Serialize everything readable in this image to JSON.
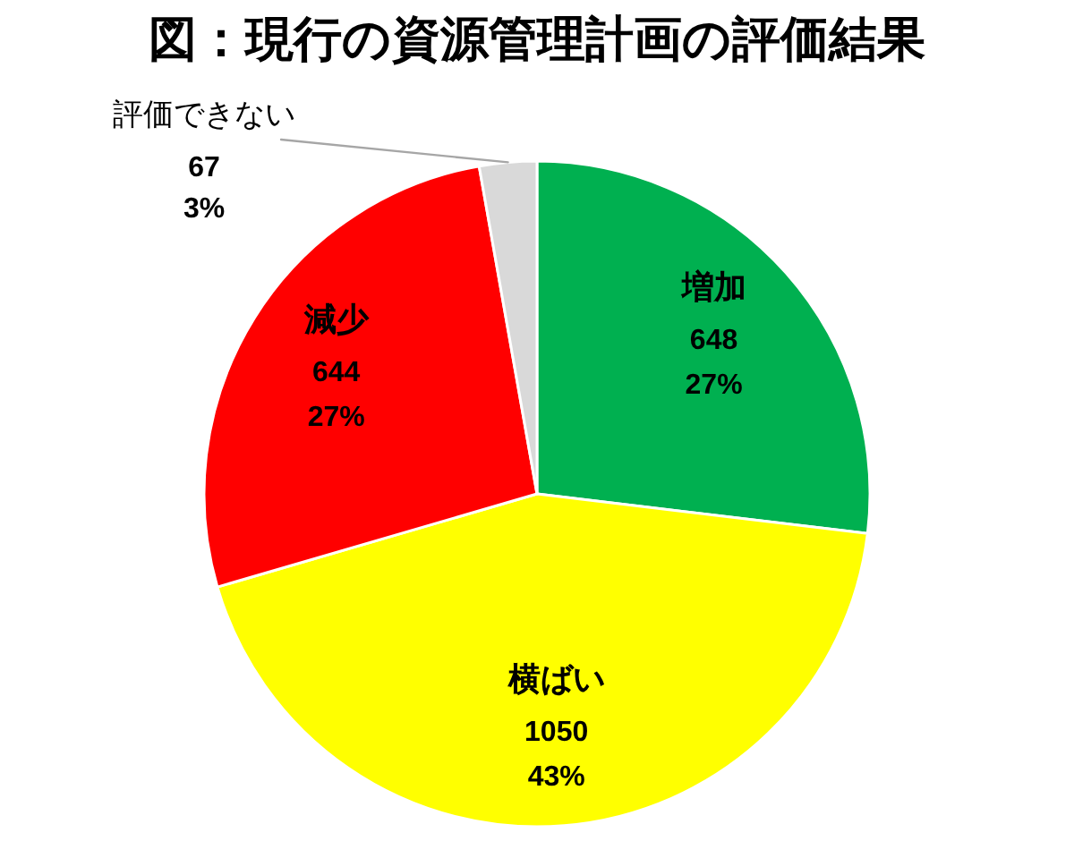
{
  "chart_data": {
    "type": "pie",
    "title": "図：現行の資源管理計画の評価結果",
    "categories": [
      "増加",
      "横ばい",
      "減少",
      "評価できない"
    ],
    "values": [
      648,
      1050,
      644,
      67
    ],
    "colors": [
      "#00b050",
      "#ffff00",
      "#ff0000",
      "#d9d9d9"
    ],
    "value_labels": [
      "648\n27%",
      "1050\n43%",
      "644\n27%",
      "67\n3%"
    ]
  }
}
